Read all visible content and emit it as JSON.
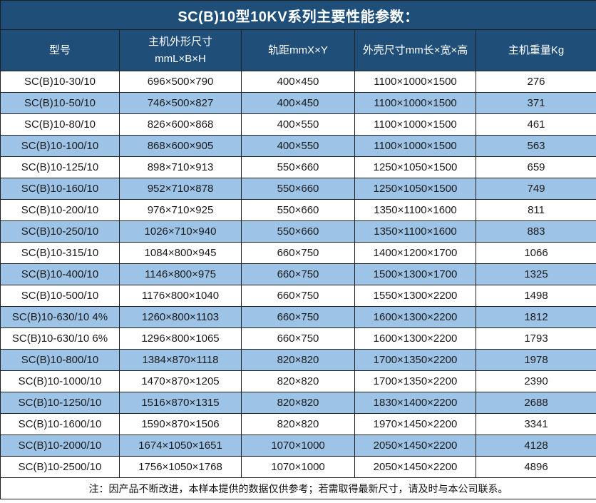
{
  "title": "SC(B)10型10KV系列主要性能参数：",
  "colors": {
    "header_bg": "#1F4E79",
    "stripe_bg": "#9DC3E6",
    "row_bg": "#FFFFFF",
    "border": "#1F1F1F",
    "header_text": "#FFFFFF",
    "body_text": "#1A1A1A"
  },
  "table": {
    "header": {
      "col_model": "型号",
      "col_dims_line1": "主机外形尺寸",
      "col_dims_line2": "mmL×B×H",
      "col_rail": "轨距mmX×Y",
      "col_shell": "外壳尺寸mm长×宽×高",
      "col_weight": "主机重量Kg"
    },
    "rows": [
      {
        "model": "SC(B)10-30/10",
        "dims": "696×500×790",
        "rail": "400×450",
        "shell": "1100×1000×1500",
        "weight": "276"
      },
      {
        "model": "SC(B)10-50/10",
        "dims": "746×500×827",
        "rail": "400×450",
        "shell": "1100×1000×1500",
        "weight": "371"
      },
      {
        "model": "SC(B)10-80/10",
        "dims": "826×600×868",
        "rail": "400×550",
        "shell": "1100×1000×1500",
        "weight": "461"
      },
      {
        "model": "SC(B)10-100/10",
        "dims": "868×600×905",
        "rail": "400×550",
        "shell": "1100×1000×1500",
        "weight": "563"
      },
      {
        "model": "SC(B)10-125/10",
        "dims": "898×710×913",
        "rail": "550×660",
        "shell": "1250×1050×1500",
        "weight": "659"
      },
      {
        "model": "SC(B)10-160/10",
        "dims": "952×710×878",
        "rail": "550×660",
        "shell": "1250×1050×1500",
        "weight": "749"
      },
      {
        "model": "SC(B)10-200/10",
        "dims": "976×710×925",
        "rail": "550×660",
        "shell": "1350×1100×1600",
        "weight": "811"
      },
      {
        "model": "SC(B)10-250/10",
        "dims": "1026×710×940",
        "rail": "550×660",
        "shell": "1350×1100×1600",
        "weight": "883"
      },
      {
        "model": "SC(B)10-315/10",
        "dims": "1084×800×945",
        "rail": "660×750",
        "shell": "1400×1200×1700",
        "weight": "1066"
      },
      {
        "model": "SC(B)10-400/10",
        "dims": "1146×800×975",
        "rail": "660×750",
        "shell": "1500×1300×1700",
        "weight": "1325"
      },
      {
        "model": "SC(B)10-500/10",
        "dims": "1176×800×1040",
        "rail": "660×750",
        "shell": "1550×1300×2200",
        "weight": "1498"
      },
      {
        "model": "SC(B)10-630/10 4%",
        "dims": "1260×800×1103",
        "rail": "660×750",
        "shell": "1600×1300×2200",
        "weight": "1812"
      },
      {
        "model": "SC(B)10-630/10 6%",
        "dims": "1296×800×1065",
        "rail": "660×750",
        "shell": "1600×1300×2200",
        "weight": "1793"
      },
      {
        "model": "SC(B)10-800/10",
        "dims": "1384×870×1118",
        "rail": "820×820",
        "shell": "1700×1350×2200",
        "weight": "1978"
      },
      {
        "model": "SC(B)10-1000/10",
        "dims": "1470×870×1205",
        "rail": "820×820",
        "shell": "1700×1350×2200",
        "weight": "2390"
      },
      {
        "model": "SC(B)10-1250/10",
        "dims": "1516×870×1315",
        "rail": "820×820",
        "shell": "1830×1400×2200",
        "weight": "2688"
      },
      {
        "model": "SC(B)10-1600/10",
        "dims": "1590×870×1506",
        "rail": "820×820",
        "shell": "1970×1450×2200",
        "weight": "3341"
      },
      {
        "model": "SC(B)10-2000/10",
        "dims": "1674×1050×1651",
        "rail": "1070×1000",
        "shell": "2050×1450×2200",
        "weight": "4128"
      },
      {
        "model": "SC(B)10-2500/10",
        "dims": "1756×1050×1768",
        "rail": "1070×1000",
        "shell": "2050×1450×2200",
        "weight": "4896"
      }
    ]
  },
  "footer_note": "注：因产品不断改进，本样本提供的数据仅供参考；若需取得最新尺寸，请及时与本公司联系。"
}
